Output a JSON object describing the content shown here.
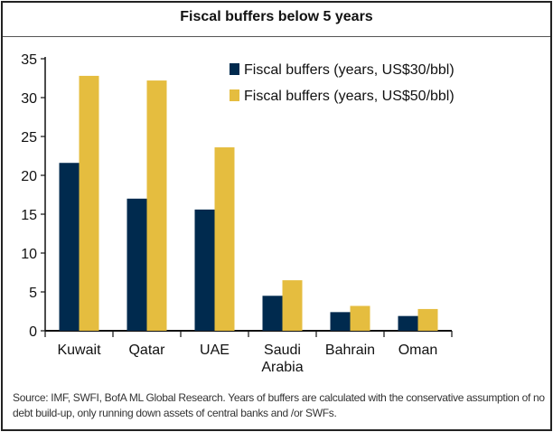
{
  "chart_data": {
    "type": "bar",
    "title": "Fiscal buffers below 5 years",
    "categories": [
      "Kuwait",
      "Qatar",
      "UAE",
      "Saudi Arabia",
      "Bahrain",
      "Oman"
    ],
    "category_lines": [
      [
        "Kuwait"
      ],
      [
        "Qatar"
      ],
      [
        "UAE"
      ],
      [
        "Saudi",
        "Arabia"
      ],
      [
        "Bahrain"
      ],
      [
        "Oman"
      ]
    ],
    "series": [
      {
        "name": "Fiscal buffers (years, US$30/bbl)",
        "color": "#002a4e",
        "values": [
          21.6,
          17.0,
          15.6,
          4.5,
          2.4,
          1.9
        ]
      },
      {
        "name": "Fiscal buffers (years, US$50/bbl)",
        "color": "#e5bd3f",
        "values": [
          32.8,
          32.2,
          23.6,
          6.5,
          3.2,
          2.8
        ]
      }
    ],
    "ylim": [
      0,
      35
    ],
    "yticks": [
      0,
      5,
      10,
      15,
      20,
      25,
      30,
      35
    ],
    "xlabel": "",
    "ylabel": "",
    "grid": false,
    "legend_position": "top-right"
  },
  "source": "Source: IMF, SWFI, BofA ML Global Research. Years of buffers are calculated with the conservative assumption of no debt build-up, only running down assets of central banks and /or SWFs."
}
